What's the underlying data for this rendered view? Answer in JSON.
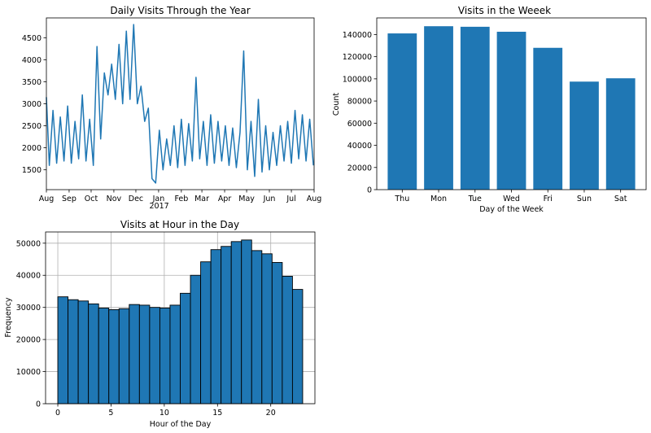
{
  "chart_data": [
    {
      "type": "line",
      "title": "Daily Visits Through the Year",
      "xlabel": "",
      "ylabel": "",
      "color": "#1f77b4",
      "ylim": [
        1050,
        4950
      ],
      "xlim": [
        "2016-08-01",
        "2017-08-01"
      ],
      "x_ticks": [
        {
          "date": "2016-08-01",
          "label": "Aug"
        },
        {
          "date": "2016-09-01",
          "label": "Sep"
        },
        {
          "date": "2016-10-01",
          "label": "Oct"
        },
        {
          "date": "2016-11-01",
          "label": "Nov"
        },
        {
          "date": "2016-12-01",
          "label": "Dec"
        },
        {
          "date": "2017-01-01",
          "label": "Jan"
        },
        {
          "date": "2017-02-01",
          "label": "Feb"
        },
        {
          "date": "2017-03-01",
          "label": "Mar"
        },
        {
          "date": "2017-04-01",
          "label": "Apr"
        },
        {
          "date": "2017-05-01",
          "label": "May"
        },
        {
          "date": "2017-06-01",
          "label": "Jun"
        },
        {
          "date": "2017-07-01",
          "label": "Jul"
        },
        {
          "date": "2017-08-01",
          "label": "Aug"
        }
      ],
      "year_label": "2017",
      "y_ticks": [
        1500,
        2000,
        2500,
        3000,
        3500,
        4000,
        4500
      ],
      "grid": false,
      "x": [
        "2016-08-01",
        "2016-08-05",
        "2016-08-10",
        "2016-08-15",
        "2016-08-20",
        "2016-08-25",
        "2016-08-30",
        "2016-09-04",
        "2016-09-09",
        "2016-09-14",
        "2016-09-19",
        "2016-09-24",
        "2016-09-29",
        "2016-10-04",
        "2016-10-09",
        "2016-10-14",
        "2016-10-19",
        "2016-10-24",
        "2016-10-29",
        "2016-11-03",
        "2016-11-08",
        "2016-11-13",
        "2016-11-18",
        "2016-11-23",
        "2016-11-28",
        "2016-12-03",
        "2016-12-08",
        "2016-12-13",
        "2016-12-18",
        "2016-12-23",
        "2016-12-28",
        "2017-01-02",
        "2017-01-07",
        "2017-01-12",
        "2017-01-17",
        "2017-01-22",
        "2017-01-27",
        "2017-02-01",
        "2017-02-06",
        "2017-02-11",
        "2017-02-16",
        "2017-02-21",
        "2017-02-26",
        "2017-03-03",
        "2017-03-08",
        "2017-03-13",
        "2017-03-18",
        "2017-03-23",
        "2017-03-28",
        "2017-04-02",
        "2017-04-07",
        "2017-04-12",
        "2017-04-17",
        "2017-04-22",
        "2017-04-27",
        "2017-05-02",
        "2017-05-07",
        "2017-05-12",
        "2017-05-17",
        "2017-05-22",
        "2017-05-27",
        "2017-06-01",
        "2017-06-06",
        "2017-06-11",
        "2017-06-16",
        "2017-06-21",
        "2017-06-26",
        "2017-07-01",
        "2017-07-06",
        "2017-07-11",
        "2017-07-16",
        "2017-07-21",
        "2017-07-26",
        "2017-07-31"
      ],
      "values": [
        3150,
        1600,
        2850,
        1650,
        2700,
        1700,
        2950,
        1650,
        2600,
        1750,
        3200,
        1700,
        2650,
        1600,
        4300,
        2200,
        3700,
        3200,
        3900,
        3100,
        4350,
        3000,
        4650,
        3100,
        4800,
        3000,
        3400,
        2600,
        2900,
        1300,
        1200,
        2400,
        1500,
        2200,
        1600,
        2500,
        1550,
        2650,
        1600,
        2550,
        1700,
        3600,
        1750,
        2600,
        1600,
        2750,
        1650,
        2600,
        1700,
        2500,
        1600,
        2450,
        1550,
        2350,
        4200,
        1500,
        2600,
        1350,
        3100,
        1450,
        2500,
        1500,
        2350,
        1600,
        2500,
        1700,
        2600,
        1650,
        2850,
        1750,
        2750,
        1700,
        2650,
        1600
      ]
    },
    {
      "type": "bar",
      "title": "Visits in the Weeek",
      "xlabel": "Day of the Week",
      "ylabel": "Count",
      "color": "#1f77b4",
      "categories": [
        "Thu",
        "Mon",
        "Tue",
        "Wed",
        "Fri",
        "Sun",
        "Sat"
      ],
      "values": [
        141000,
        147500,
        147000,
        142500,
        128000,
        97500,
        100500
      ],
      "ylim": [
        0,
        155000
      ],
      "y_ticks": [
        0,
        20000,
        40000,
        60000,
        80000,
        100000,
        120000,
        140000
      ],
      "grid": false
    },
    {
      "type": "bar",
      "title": "Visits at Hour in the Day",
      "xlabel": "Hour of the Day",
      "ylabel": "Frequency",
      "color": "#1f77b4",
      "edge_color": "#000000",
      "bins": 24,
      "bin_range": [
        0,
        23
      ],
      "values": [
        33300,
        32400,
        32000,
        31100,
        29800,
        29300,
        29600,
        30900,
        30700,
        30000,
        29800,
        30700,
        34400,
        40000,
        44200,
        48000,
        49000,
        50500,
        51000,
        47700,
        46700,
        44000,
        39700,
        35600
      ],
      "xlim": [
        -1.15,
        24.15
      ],
      "ylim": [
        0,
        53500
      ],
      "x_ticks": [
        0,
        5,
        10,
        15,
        20
      ],
      "y_ticks": [
        0,
        10000,
        20000,
        30000,
        40000,
        50000
      ],
      "grid": true
    }
  ]
}
